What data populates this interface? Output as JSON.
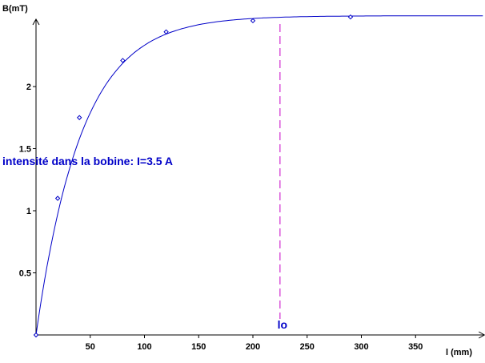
{
  "chart_data": {
    "type": "scatter",
    "title": "",
    "xlabel": "l (mm)",
    "ylabel": "B(mT)",
    "xlim": [
      0,
      412
    ],
    "ylim": [
      0,
      2.55
    ],
    "x_ticks": [
      50,
      100,
      150,
      200,
      250,
      300,
      350
    ],
    "y_ticks": [
      0.5,
      1,
      1.5,
      2
    ],
    "y_tick_labels": [
      "0.5",
      "1",
      "1.5",
      "2"
    ],
    "grid": false,
    "points": [
      {
        "x": 0,
        "y": 0
      },
      {
        "x": 20,
        "y": 1.1
      },
      {
        "x": 40,
        "y": 1.75
      },
      {
        "x": 80,
        "y": 2.21
      },
      {
        "x": 120,
        "y": 2.44
      },
      {
        "x": 200,
        "y": 2.53
      },
      {
        "x": 290,
        "y": 2.56
      }
    ],
    "fit_curve": {
      "model": "exponential saturation",
      "asymptote": 2.57,
      "decay_mm": 42
    },
    "marker": {
      "label": "lo",
      "x": 225
    },
    "annotation": "intensité dans la bobine: I=3.5 A",
    "colors": {
      "curve": "#0000c8",
      "points": "#0000c8",
      "marker_line": "#c800c8",
      "axes": "#000000",
      "annotation": "#0000c8"
    }
  }
}
